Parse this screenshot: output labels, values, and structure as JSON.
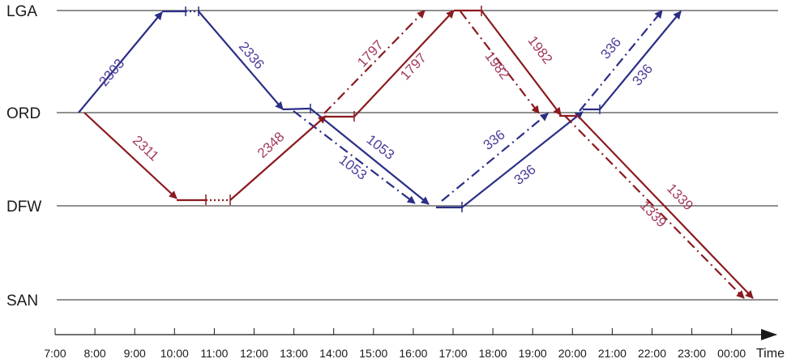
{
  "airports": [
    "LGA",
    "ORD",
    "DFW",
    "SAN"
  ],
  "time_axis": {
    "ticks": [
      "7:00",
      "8:00",
      "9:00",
      "10:00",
      "11:00",
      "12:00",
      "13:00",
      "14:00",
      "15:00",
      "16:00",
      "17:00",
      "18:00",
      "19:00",
      "20:00",
      "21:00",
      "22:00",
      "23:00",
      "00:00"
    ],
    "label": "Time"
  },
  "colors": {
    "blue": "#2a2e86",
    "red": "#8b1a1f",
    "blue_text": "#4f3c9a",
    "red_text": "#a23a5c"
  },
  "legs": [
    {
      "flight": "2303",
      "color": "blue",
      "style": "solid",
      "from": "ORD",
      "to": "LGA"
    },
    {
      "flight": "2336",
      "color": "blue",
      "style": "solid",
      "from": "LGA",
      "to": "ORD"
    },
    {
      "flight": "1053",
      "color": "blue",
      "style": "solid",
      "from": "ORD",
      "to": "DFW"
    },
    {
      "flight": "1053",
      "color": "blue",
      "style": "dashdot",
      "from": "ORD",
      "to": "DFW"
    },
    {
      "flight": "336",
      "color": "blue",
      "style": "solid",
      "from": "DFW",
      "to": "ORD"
    },
    {
      "flight": "336",
      "color": "blue",
      "style": "dashdot",
      "from": "DFW",
      "to": "ORD"
    },
    {
      "flight": "336",
      "color": "blue",
      "style": "solid",
      "from": "ORD",
      "to": "LGA"
    },
    {
      "flight": "336",
      "color": "blue",
      "style": "dashdot",
      "from": "ORD",
      "to": "LGA"
    },
    {
      "flight": "2311",
      "color": "red",
      "style": "solid",
      "from": "ORD",
      "to": "DFW"
    },
    {
      "flight": "2348",
      "color": "red",
      "style": "solid",
      "from": "DFW",
      "to": "ORD"
    },
    {
      "flight": "1797",
      "color": "red",
      "style": "solid",
      "from": "ORD",
      "to": "LGA"
    },
    {
      "flight": "1797",
      "color": "red",
      "style": "dashdot",
      "from": "ORD",
      "to": "LGA"
    },
    {
      "flight": "1982",
      "color": "red",
      "style": "solid",
      "from": "LGA",
      "to": "ORD"
    },
    {
      "flight": "1982",
      "color": "red",
      "style": "dashdot",
      "from": "LGA",
      "to": "ORD"
    },
    {
      "flight": "1339",
      "color": "red",
      "style": "solid",
      "from": "ORD",
      "to": "SAN"
    },
    {
      "flight": "1339",
      "color": "red",
      "style": "dashdot",
      "from": "ORD",
      "to": "SAN"
    }
  ]
}
